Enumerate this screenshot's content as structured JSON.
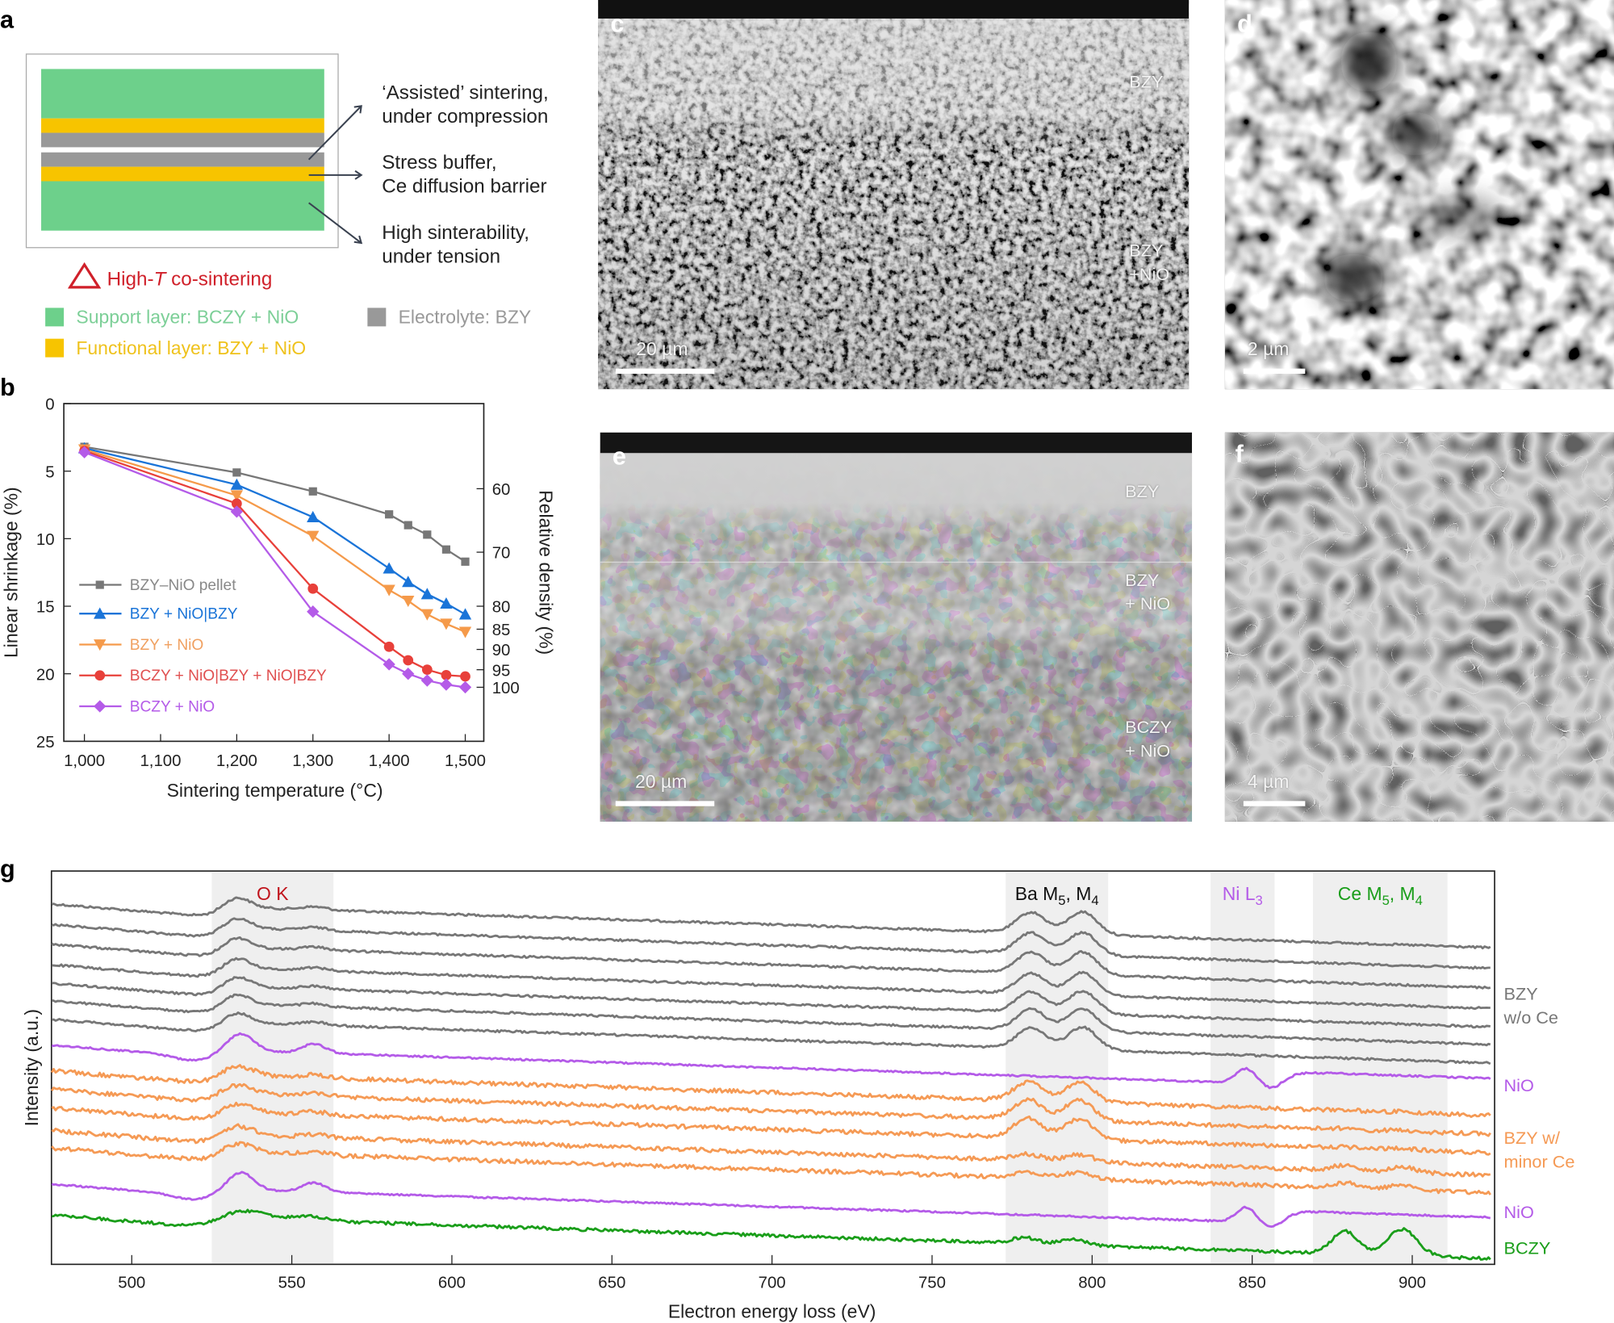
{
  "panel_labels": {
    "a": "a",
    "b": "b",
    "c": "c",
    "d": "d",
    "e": "e",
    "f": "f",
    "g": "g"
  },
  "schematic": {
    "layer_colors": {
      "support": "#6dd08b",
      "functional": "#f7c400",
      "electrolyte": "#999999"
    },
    "annotations": [
      {
        "line1": "‘Assisted’ sintering,",
        "line2": "under compression"
      },
      {
        "line1": "Stress buffer,",
        "line2": "Ce diffusion barrier"
      },
      {
        "line1": "High sinterability,",
        "line2": "under tension"
      }
    ],
    "condition": {
      "prefix": "High-",
      "italic": "T",
      "suffix": " co-sintering",
      "color": "#d0202a"
    },
    "legend": [
      {
        "label": "Support layer: BCZY + NiO",
        "color": "#6dd08b",
        "text_color": "#7ccf97"
      },
      {
        "label": "Electrolyte: BZY",
        "color": "#999999",
        "text_color": "#999999"
      },
      {
        "label": "Functional layer: BZY + NiO",
        "color": "#f7c400",
        "text_color": "#efc21c"
      }
    ]
  },
  "micrographs": {
    "c": {
      "scale_bar": "20 µm",
      "region_labels": [
        {
          "text": "BZY"
        },
        {
          "text": "BZY"
        },
        {
          "text": "+NiO"
        }
      ]
    },
    "d": {
      "scale_bar": "2 µm"
    },
    "e": {
      "scale_bar": "20 µm",
      "region_labels": [
        {
          "text": "BZY"
        },
        {
          "text": "BZY"
        },
        {
          "text": "+ NiO"
        },
        {
          "text": "BCZY"
        },
        {
          "text": "+ NiO"
        }
      ]
    },
    "f": {
      "scale_bar": "4 µm"
    }
  },
  "chart_data": [
    {
      "type": "line",
      "x": [
        1000,
        1200,
        1300,
        1400,
        1425,
        1450,
        1475,
        1500
      ],
      "xlabel": "Sintering temperature (°C)",
      "ylabel": "Linear shrinkage (%)",
      "ylabel_right": "Relative density (%)",
      "xlim": [
        1000,
        1500
      ],
      "ylim": [
        0,
        25
      ],
      "y_inverted": true,
      "x_ticks": [
        {
          "value": 1000,
          "label": "1,000"
        },
        {
          "value": 1100,
          "label": "1,100"
        },
        {
          "value": 1200,
          "label": "1,200"
        },
        {
          "value": 1300,
          "label": "1,300"
        },
        {
          "value": 1400,
          "label": "1,400"
        },
        {
          "value": 1500,
          "label": "1,500"
        }
      ],
      "y_ticks": [
        {
          "value": 0,
          "label": "0"
        },
        {
          "value": 5,
          "label": "5"
        },
        {
          "value": 10,
          "label": "10"
        },
        {
          "value": 15,
          "label": "15"
        },
        {
          "value": 20,
          "label": "20"
        },
        {
          "value": 25,
          "label": "25"
        }
      ],
      "right_ticks": [
        {
          "label": "60",
          "shrinkage": 6.3
        },
        {
          "label": "70",
          "shrinkage": 11.0
        },
        {
          "label": "80",
          "shrinkage": 15.0
        },
        {
          "label": "85",
          "shrinkage": 16.7
        },
        {
          "label": "90",
          "shrinkage": 18.2
        },
        {
          "label": "95",
          "shrinkage": 19.7
        },
        {
          "label": "100",
          "shrinkage": 21.0
        }
      ],
      "legend_position": "center-left",
      "grid": false,
      "series": [
        {
          "name": "BZY–NiO pellet",
          "color": "#777777",
          "text_color": "#888888",
          "marker": "square",
          "values": [
            3.2,
            5.1,
            6.5,
            8.2,
            9.0,
            9.7,
            10.8,
            11.7
          ]
        },
        {
          "name": "BZY + NiO|BZY",
          "color": "#1a74d8",
          "text_color": "#1a74d8",
          "marker": "triangle-up",
          "values": [
            3.3,
            6.0,
            8.4,
            12.2,
            13.2,
            14.1,
            14.8,
            15.6
          ]
        },
        {
          "name": "BZY + NiO",
          "color": "#f59a4a",
          "text_color": "#f0a060",
          "marker": "triangle-down",
          "values": [
            3.4,
            6.8,
            9.8,
            13.8,
            14.6,
            15.6,
            16.3,
            16.9
          ]
        },
        {
          "name": "BCZY + NiO|BZY + NiO|BZY",
          "color": "#e8403a",
          "text_color": "#e05050",
          "marker": "circle",
          "values": [
            3.5,
            7.4,
            13.7,
            18.0,
            19.0,
            19.7,
            20.1,
            20.2
          ]
        },
        {
          "name": "BCZY + NiO",
          "color": "#b45be8",
          "text_color": "#b45be8",
          "marker": "diamond",
          "values": [
            3.6,
            8.0,
            15.4,
            19.3,
            20.0,
            20.5,
            20.8,
            21.0
          ]
        }
      ]
    },
    {
      "type": "line",
      "xlabel": "Electron energy loss (eV)",
      "ylabel": "Intensity (a.u.)",
      "xlim": [
        475,
        925
      ],
      "x_ticks": [
        {
          "value": 500,
          "label": "500"
        },
        {
          "value": 550,
          "label": "550"
        },
        {
          "value": 600,
          "label": "600"
        },
        {
          "value": 650,
          "label": "650"
        },
        {
          "value": 700,
          "label": "700"
        },
        {
          "value": 750,
          "label": "750"
        },
        {
          "value": 800,
          "label": "800"
        },
        {
          "value": 850,
          "label": "850"
        },
        {
          "value": 900,
          "label": "900"
        }
      ],
      "grid": false,
      "highlight_color": "#efefef",
      "regions": [
        {
          "from": 525,
          "to": 563,
          "color": "#c0141c",
          "label": [
            {
              "t": "O K"
            }
          ]
        },
        {
          "from": 773,
          "to": 805,
          "color": "#111111",
          "label": [
            {
              "t": "Ba M"
            },
            {
              "t": "5",
              "sub": true
            },
            {
              "t": ", M"
            },
            {
              "t": "4",
              "sub": true
            }
          ]
        },
        {
          "from": 837,
          "to": 857,
          "color": "#b45be8",
          "label": [
            {
              "t": "Ni L"
            },
            {
              "t": "3",
              "sub": true
            }
          ]
        },
        {
          "from": 869,
          "to": 911,
          "color": "#1a9e1a",
          "label": [
            {
              "t": "Ce M"
            },
            {
              "t": "5",
              "sub": true
            },
            {
              "t": ", M"
            },
            {
              "t": "4",
              "sub": true
            }
          ]
        }
      ],
      "groups": [
        {
          "label": [
            "BZY",
            "w/o Ce"
          ],
          "color": "#777777",
          "spectra": 7,
          "edges": [
            "O K",
            "Ba M5,4"
          ]
        },
        {
          "label": [
            "NiO"
          ],
          "color": "#b45be8",
          "spectra": 1,
          "edges": [
            "O K",
            "Ni L3"
          ]
        },
        {
          "label": [
            "BZY w/",
            "minor Ce"
          ],
          "color": "#f59a55",
          "spectra": 5,
          "edges": [
            "O K",
            "Ba M5,4",
            "Ce M5,4 (weak)"
          ]
        },
        {
          "label": [
            "NiO"
          ],
          "color": "#b45be8",
          "spectra": 1,
          "edges": [
            "O K",
            "Ni L3"
          ]
        },
        {
          "label": [
            "BCZY"
          ],
          "color": "#1a9e1a",
          "spectra": 1,
          "edges": [
            "O K",
            "Ba M5,4",
            "Ce M5,4"
          ]
        }
      ]
    }
  ]
}
